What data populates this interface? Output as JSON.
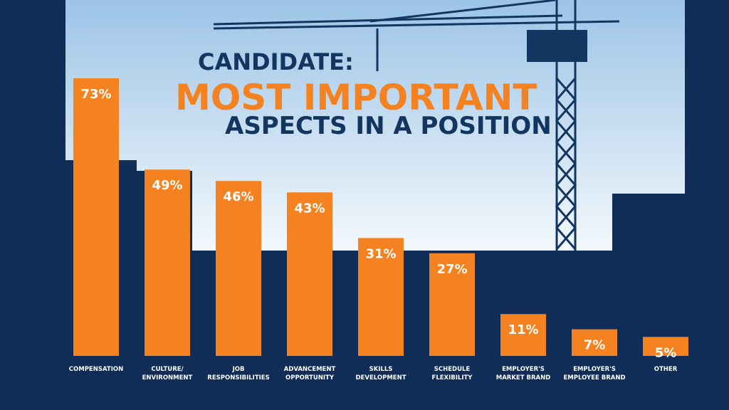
{
  "chart_data": {
    "type": "bar",
    "title": "MOST IMPORTANT",
    "title_prefix": "CANDIDATE:",
    "subtitle": "ASPECTS IN A POSITION",
    "categories": [
      "COMPENSATION",
      "CULTURE/ ENVIRONMENT",
      "JOB RESPONSIBILITIES",
      "ADVANCEMENT OPPORTUNITY",
      "SKILLS DEVELOPMENT",
      "SCHEDULE FLEXIBILITY",
      "EMPLOYER'S MARKET BRAND",
      "EMPLOYER'S EMPLOYEE BRAND",
      "OTHER"
    ],
    "values": [
      73,
      49,
      46,
      43,
      31,
      27,
      11,
      7,
      5
    ],
    "value_labels": [
      "73%",
      "49%",
      "46%",
      "43%",
      "31%",
      "27%",
      "11%",
      "7%",
      "5%"
    ],
    "color": "#f58220"
  }
}
